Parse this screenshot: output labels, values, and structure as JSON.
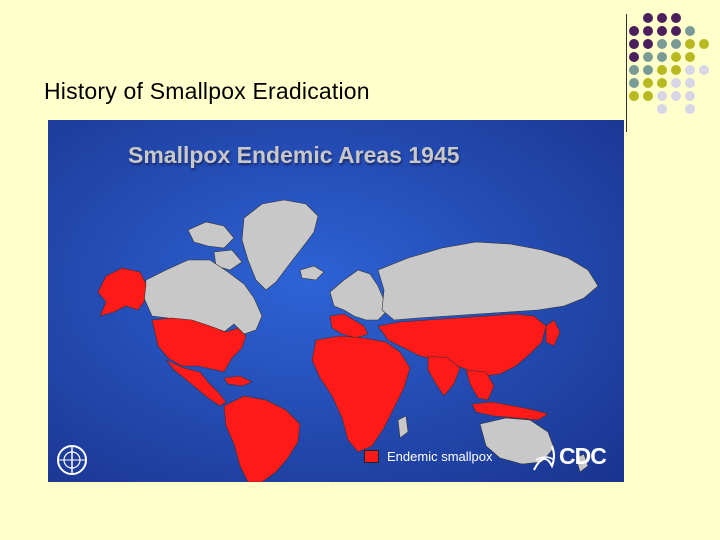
{
  "slide": {
    "title": "History of Smallpox Eradication"
  },
  "map": {
    "heading": "Smallpox Endemic Areas 1945",
    "legend": [
      {
        "label": "Endemic smallpox",
        "color": "#ff1a1a"
      }
    ],
    "colors": {
      "ocean": "#1f47b8",
      "non_endemic": "#c8c8c8",
      "endemic": "#ff1a1a"
    },
    "logos": {
      "left": "WHO emblem",
      "right": "CDC"
    }
  },
  "decor": {
    "dot_colors": [
      "#4a1f5c",
      "#7a9a96",
      "#b8b820",
      "#d6d6e6"
    ]
  }
}
